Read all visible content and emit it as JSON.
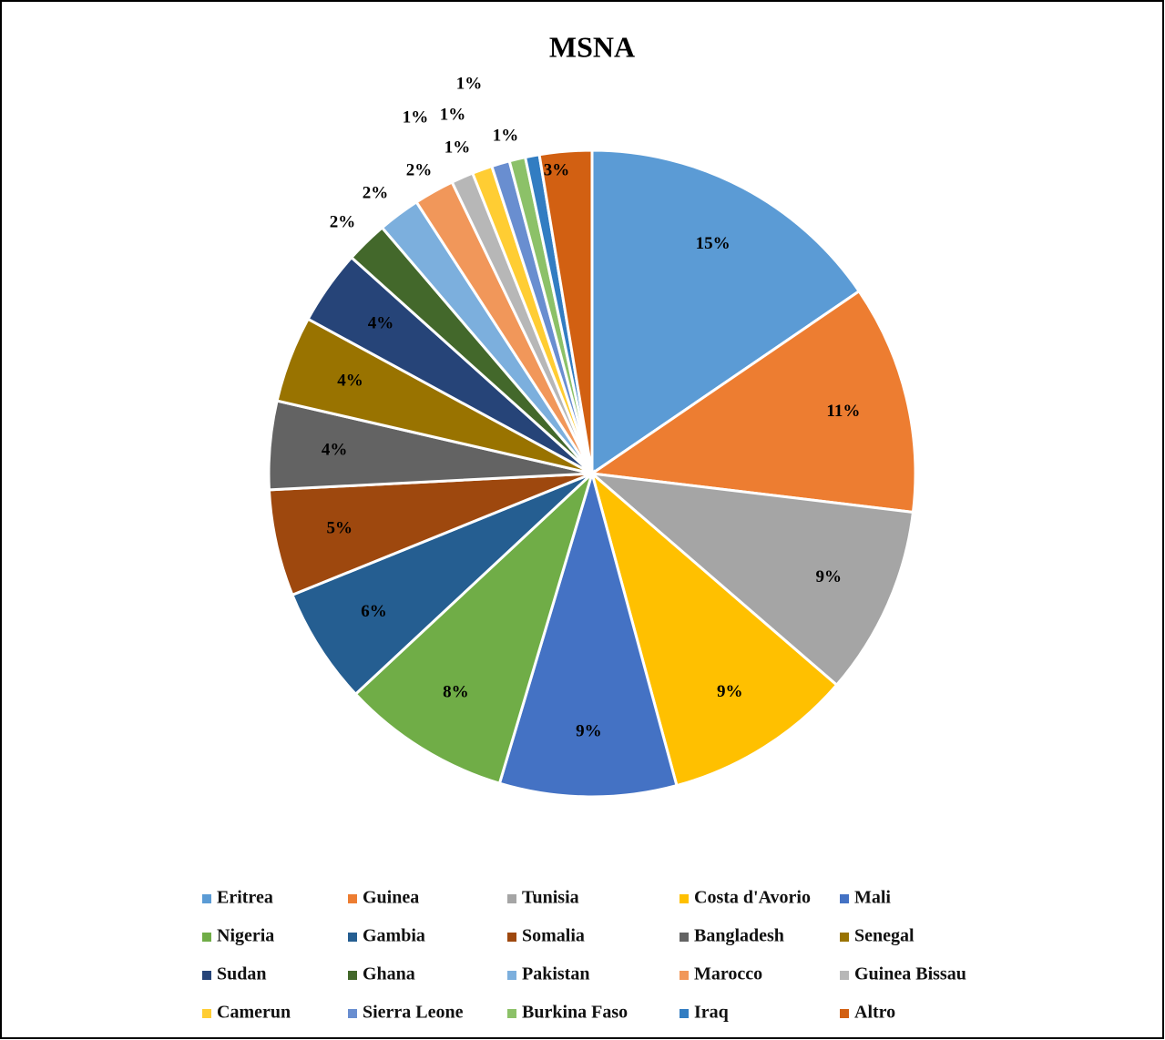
{
  "chart_data": {
    "type": "pie",
    "title": "MSNA",
    "categories": [
      "Eritrea",
      "Guinea",
      "Tunisia",
      "Costa d'Avorio",
      "Mali",
      "Nigeria",
      "Gambia",
      "Somalia",
      "Bangladesh",
      "Senegal",
      "Sudan",
      "Ghana",
      "Pakistan",
      "Marocco",
      "Guinea Bissau",
      "Camerun",
      "Sierra Leone",
      "Burkina Faso",
      "Iraq",
      "Altro"
    ],
    "values": [
      15.4,
      11.4,
      9.4,
      9.4,
      8.8,
      8.4,
      5.8,
      5.3,
      4.4,
      4.3,
      3.7,
      2.1,
      2.1,
      2.0,
      1.1,
      1.0,
      0.9,
      0.8,
      0.7,
      2.6
    ],
    "value_labels": [
      "15%",
      "11%",
      "9%",
      "9%",
      "9%",
      "8%",
      "6%",
      "5%",
      "4%",
      "4%",
      "4%",
      "2%",
      "2%",
      "2%",
      "1%",
      "1%",
      "1%",
      "1%",
      "1%",
      "3%"
    ],
    "colors": [
      "#5B9BD5",
      "#ED7D31",
      "#A5A5A5",
      "#FFC000",
      "#4472C4",
      "#70AD47",
      "#255E91",
      "#9E480E",
      "#636363",
      "#997300",
      "#264478",
      "#43682B",
      "#7CAFDD",
      "#F1975A",
      "#B7B7B7",
      "#FFCD33",
      "#698ED0",
      "#8CC168",
      "#327DC2",
      "#D26012"
    ],
    "legend": "bottom"
  }
}
